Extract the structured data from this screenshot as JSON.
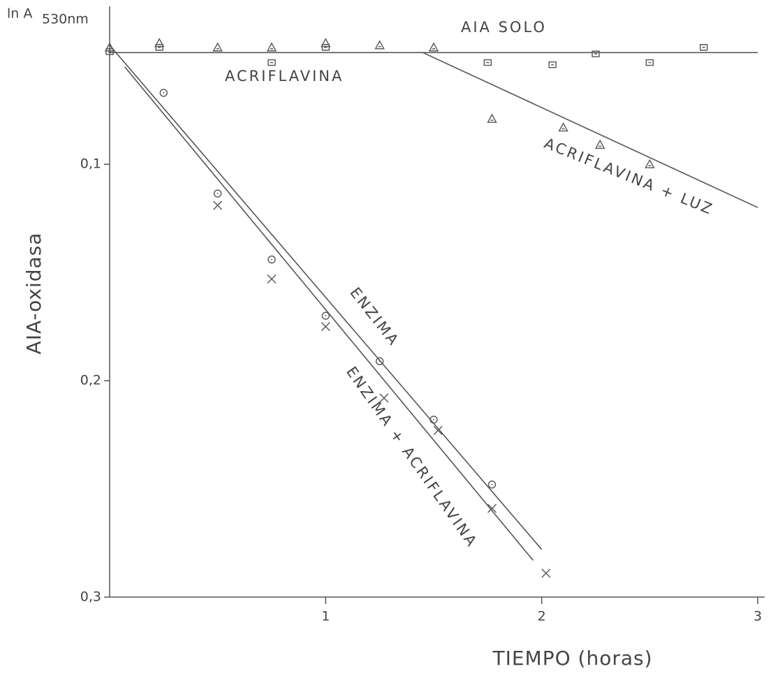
{
  "chart_data": {
    "type": "scatter",
    "ylabel_main": "ln A",
    "ylabel_sub": "530nm",
    "ylabel": "AIA-oxidasa",
    "xlabel": "TIEMPO (horas)",
    "color": "#555555",
    "xlim": [
      0,
      3
    ],
    "xticks": [
      1,
      2,
      3
    ],
    "ylim": [
      0.3,
      0.027
    ],
    "yticks": [
      {
        "value": 0.1,
        "label": "0,1"
      },
      {
        "value": 0.2,
        "label": "0,2"
      },
      {
        "value": 0.3,
        "label": "0,3"
      }
    ],
    "series": [
      {
        "name": "AIA SOLO",
        "marker": "triangle",
        "x": [
          0,
          0.23,
          0.5,
          0.75,
          1,
          1.25,
          1.5
        ],
        "values": [
          0.046,
          0.044,
          0.046,
          0.046,
          0.044,
          0.045,
          0.046
        ],
        "fit": {
          "x": [
            0,
            3
          ],
          "values": [
            0.0484,
            0.0484
          ]
        }
      },
      {
        "name": "ACRIFLAVINA",
        "marker": "square",
        "x": [
          0,
          0.23,
          0.75,
          1,
          1.75,
          2.05,
          2.25,
          2.5,
          2.75
        ],
        "values": [
          0.048,
          0.046,
          0.053,
          0.046,
          0.053,
          0.054,
          0.049,
          0.053,
          0.046
        ]
      },
      {
        "name": "ACRIFLAVINA + LUZ",
        "marker": "triangle",
        "x": [
          1.77,
          2.1,
          2.27,
          2.5
        ],
        "values": [
          0.079,
          0.083,
          0.091,
          0.1
        ],
        "fit": {
          "x": [
            1.45,
            3
          ],
          "values": [
            0.0484,
            0.12
          ]
        }
      },
      {
        "name": "ENZIMA",
        "marker": "circle",
        "x": [
          0.25,
          0.5,
          0.75,
          1,
          1.25,
          1.5,
          1.77
        ],
        "values": [
          0.067,
          0.1135,
          0.144,
          0.17,
          0.191,
          0.218,
          0.248
        ],
        "fit": {
          "x": [
            0,
            2
          ],
          "values": [
            0.045,
            0.278
          ]
        }
      },
      {
        "name": "ENZIMA + ACRIFLAVINA",
        "marker": "cross",
        "x": [
          0.5,
          0.75,
          1,
          1.27,
          1.52,
          1.77,
          2.02
        ],
        "values": [
          0.119,
          0.153,
          0.175,
          0.208,
          0.223,
          0.259,
          0.289
        ],
        "fit": {
          "x": [
            0.07,
            1.96
          ],
          "values": [
            0.055,
            0.283
          ]
        }
      }
    ]
  }
}
